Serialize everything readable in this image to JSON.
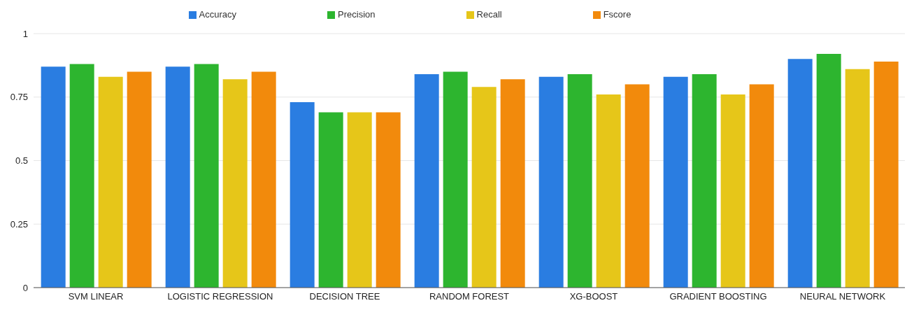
{
  "chart_data": {
    "type": "bar",
    "categories": [
      "SVM LINEAR",
      "LOGISTIC REGRESSION",
      "DECISION TREE",
      "RANDOM FOREST",
      "XG-BOOST",
      "GRADIENT BOOSTING",
      "NEURAL NETWORK"
    ],
    "series": [
      {
        "name": "Accuracy",
        "color": "#2a7de1",
        "values": [
          0.87,
          0.87,
          0.73,
          0.84,
          0.83,
          0.83,
          0.9
        ]
      },
      {
        "name": "Precision",
        "color": "#2db52f",
        "values": [
          0.88,
          0.88,
          0.69,
          0.85,
          0.84,
          0.84,
          0.92
        ]
      },
      {
        "name": "Recall",
        "color": "#e6c619",
        "values": [
          0.83,
          0.82,
          0.69,
          0.79,
          0.76,
          0.76,
          0.86
        ]
      },
      {
        "name": "Fscore",
        "color": "#f28a0c",
        "values": [
          0.85,
          0.85,
          0.69,
          0.82,
          0.8,
          0.8,
          0.89
        ]
      }
    ],
    "ylim": [
      0,
      1
    ],
    "yticks": [
      0,
      0.25,
      0.5,
      0.75,
      1
    ],
    "grid": "y",
    "legend": "top"
  }
}
